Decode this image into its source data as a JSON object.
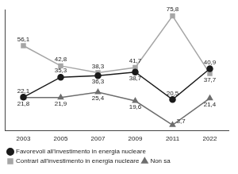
{
  "chart_data": {
    "type": "line",
    "categories": [
      "2003",
      "2005",
      "2007",
      "2009",
      "2011",
      "2022"
    ],
    "series": [
      {
        "name": "Favorevoli all'investimento in energia nucleare",
        "color": "#1a1a1a",
        "marker": "circle",
        "line_style": "solid",
        "values": [
          22.1,
          35.3,
          36.3,
          38.7,
          20.5,
          40.9
        ],
        "value_labels": [
          "22,1",
          "35,3",
          "36,3",
          "38,7",
          "20,5",
          "40,9"
        ]
      },
      {
        "name": "Contrari all'investimento in energia nucleare",
        "color": "#a6a6a6",
        "marker": "rect",
        "line_style": "solid",
        "values": [
          56.1,
          42.8,
          38.3,
          41.7,
          75.8,
          37.7
        ],
        "value_labels": [
          "56,1",
          "42,8",
          "38,3",
          "41,7",
          "75,8",
          "37,7"
        ]
      },
      {
        "name": "Non sa",
        "color": "#6e6e6e",
        "marker": "triangle",
        "line_style": "solid",
        "values": [
          21.8,
          21.9,
          25.4,
          19.6,
          3.7,
          21.4
        ],
        "value_labels": [
          "21,8",
          "21,9",
          "25,4",
          "19,6",
          "3,7",
          "21,4"
        ]
      }
    ],
    "ylim": [
      0,
      80
    ],
    "grid": false,
    "legend": "bottom",
    "data_labels": true,
    "tick_labels": "x"
  }
}
